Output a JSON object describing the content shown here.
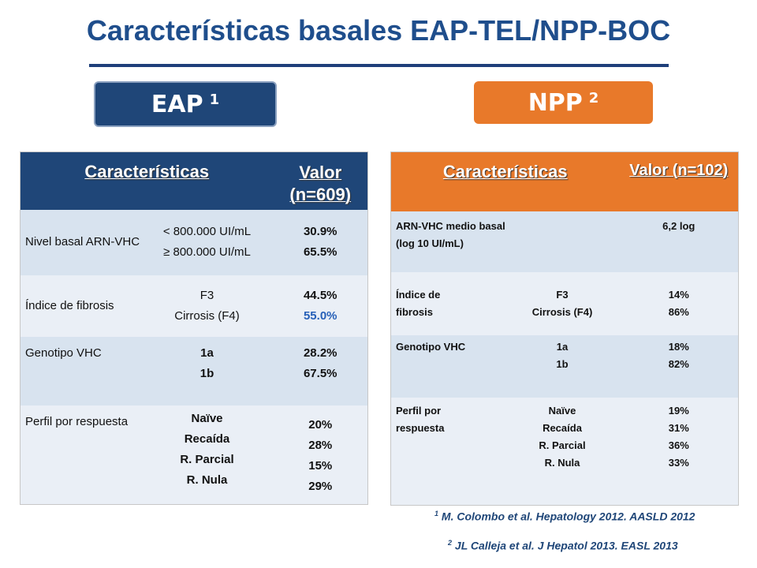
{
  "title": "Características basales EAP-TEL/NPP-BOC",
  "pill_eap": {
    "label": "EAP",
    "sup": "1"
  },
  "pill_npp": {
    "label": "NPP",
    "sup": "2"
  },
  "colors": {
    "eap_blue": "#1f4678",
    "npp_orange": "#e8792a",
    "title_blue": "#1f4e8c",
    "row_light": "#d8e3ef",
    "row_lighter": "#eaeff6"
  },
  "eap_table": {
    "header": {
      "col1": "Características",
      "col2_line1": "Valor",
      "col2_line2": "(n=609)"
    },
    "rows": [
      {
        "label": "Nivel basal ARN-VHC",
        "categories": [
          "< 800.000 UI/mL",
          "≥ 800.000 UI/mL"
        ],
        "values": [
          "30.9%",
          "65.5%"
        ]
      },
      {
        "label": "Índice de fibrosis",
        "categories": [
          "F3",
          "Cirrosis (F4)"
        ],
        "values": [
          "44.5%",
          "55.0%"
        ]
      },
      {
        "label": "Genotipo VHC",
        "categories": [
          "1a",
          "1b"
        ],
        "values": [
          "28.2%",
          "67.5%"
        ]
      },
      {
        "label": "Perfil por respuesta",
        "categories": [
          "Naïve",
          "Recaída",
          "R. Parcial",
          "R. Nula"
        ],
        "values": [
          "20%",
          "28%",
          "15%",
          "29%"
        ]
      }
    ]
  },
  "npp_table": {
    "header": {
      "col1": "Características",
      "col2": "Valor (n=102)"
    },
    "row0": {
      "label_line1": "ARN-VHC medio basal",
      "label_line2": "(log 10 UI/mL)",
      "value": "6,2 log"
    },
    "rows": [
      {
        "label": "Índice de fibrosis",
        "categories": [
          "F3",
          "Cirrosis (F4)"
        ],
        "values": [
          "14%",
          "86%"
        ]
      },
      {
        "label": "Genotipo VHC",
        "categories": [
          "1a",
          "1b"
        ],
        "values": [
          "18%",
          "82%"
        ]
      },
      {
        "label": "Perfil por respuesta",
        "categories": [
          "Naïve",
          "Recaída",
          "R. Parcial",
          "R. Nula"
        ],
        "values": [
          "19%",
          "31%",
          "36%",
          "33%"
        ]
      }
    ]
  },
  "references": [
    {
      "sup": "1",
      "text": "M. Colombo et al. Hepatology 2012. AASLD 2012"
    },
    {
      "sup": "2",
      "text": "JL Calleja et al. J Hepatol 2013. EASL 2013"
    }
  ]
}
